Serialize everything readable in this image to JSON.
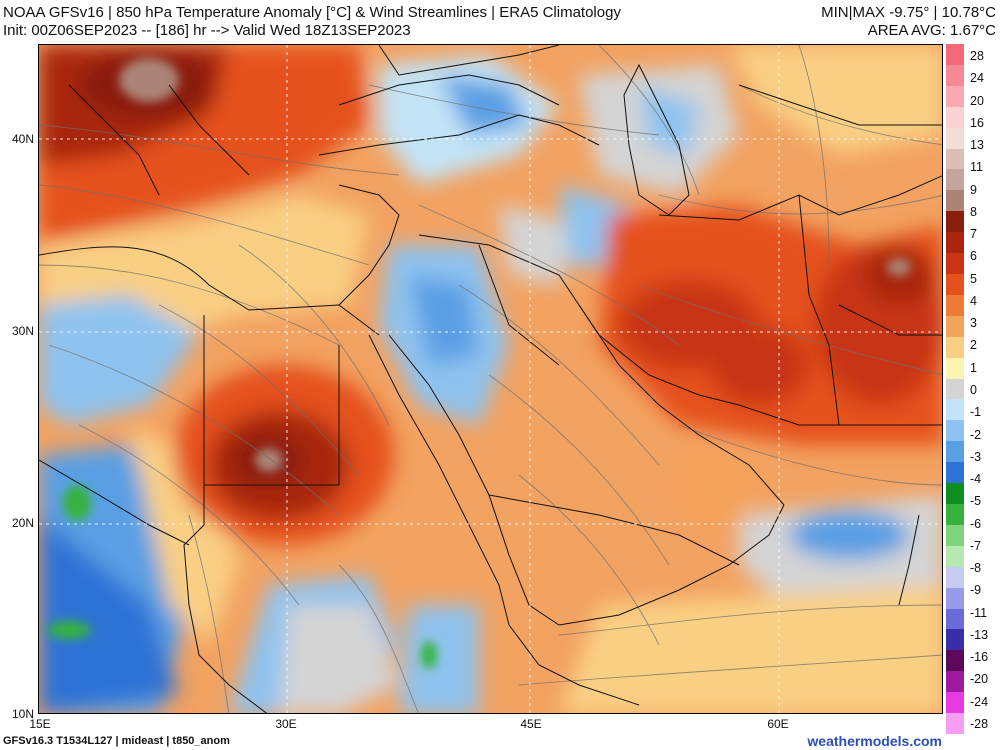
{
  "header": {
    "title": "NOAA GFSv16 | 850 hPa Temperature Anomaly [°C] & Wind Streamlines | ERA5 Climatology",
    "init": "Init: 00Z06SEP2023 -- [186] hr --> Valid Wed 18Z13SEP2023",
    "minmax": "MIN|MAX -9.75° | 10.78°C",
    "area_avg": "AREA AVG: 1.67°C"
  },
  "map": {
    "lat_labels": [
      "40N",
      "30N",
      "20N",
      "10N"
    ],
    "lon_labels": [
      "15E",
      "30E",
      "45E",
      "60E"
    ]
  },
  "colorbar": {
    "labels": [
      "28",
      "24",
      "20",
      "16",
      "13",
      "11",
      "9",
      "8",
      "7",
      "6",
      "5",
      "4",
      "3",
      "2",
      "1",
      "0",
      "-1",
      "-2",
      "-3",
      "-4",
      "-5",
      "-6",
      "-7",
      "-8",
      "-9",
      "-11",
      "-13",
      "-16",
      "-20",
      "-24",
      "-28"
    ],
    "colors": [
      "#f26a7a",
      "#f58a94",
      "#f8aab0",
      "#fbd2d2",
      "#f3ddd4",
      "#dbbfb6",
      "#c5a59b",
      "#ab8478",
      "#8a1e0d",
      "#a8260f",
      "#c83414",
      "#e5511d",
      "#ef7a35",
      "#f4a35a",
      "#f9cf84",
      "#fbf3b2",
      "#d4d4d4",
      "#c3e3f6",
      "#8fc3ef",
      "#5a9fe4",
      "#2f72d5",
      "#0f8f22",
      "#36b33e",
      "#7fd37a",
      "#b7e8b1",
      "#c7cbef",
      "#9a9be8",
      "#6a6ad8",
      "#3a2ea8",
      "#5a0a58",
      "#a01aa0",
      "#e63be3",
      "#f59ef2"
    ]
  },
  "footer": {
    "left": "GFSv16.3 T1534L127 | mideast | t850_anom",
    "right": "weathermodels.com"
  }
}
